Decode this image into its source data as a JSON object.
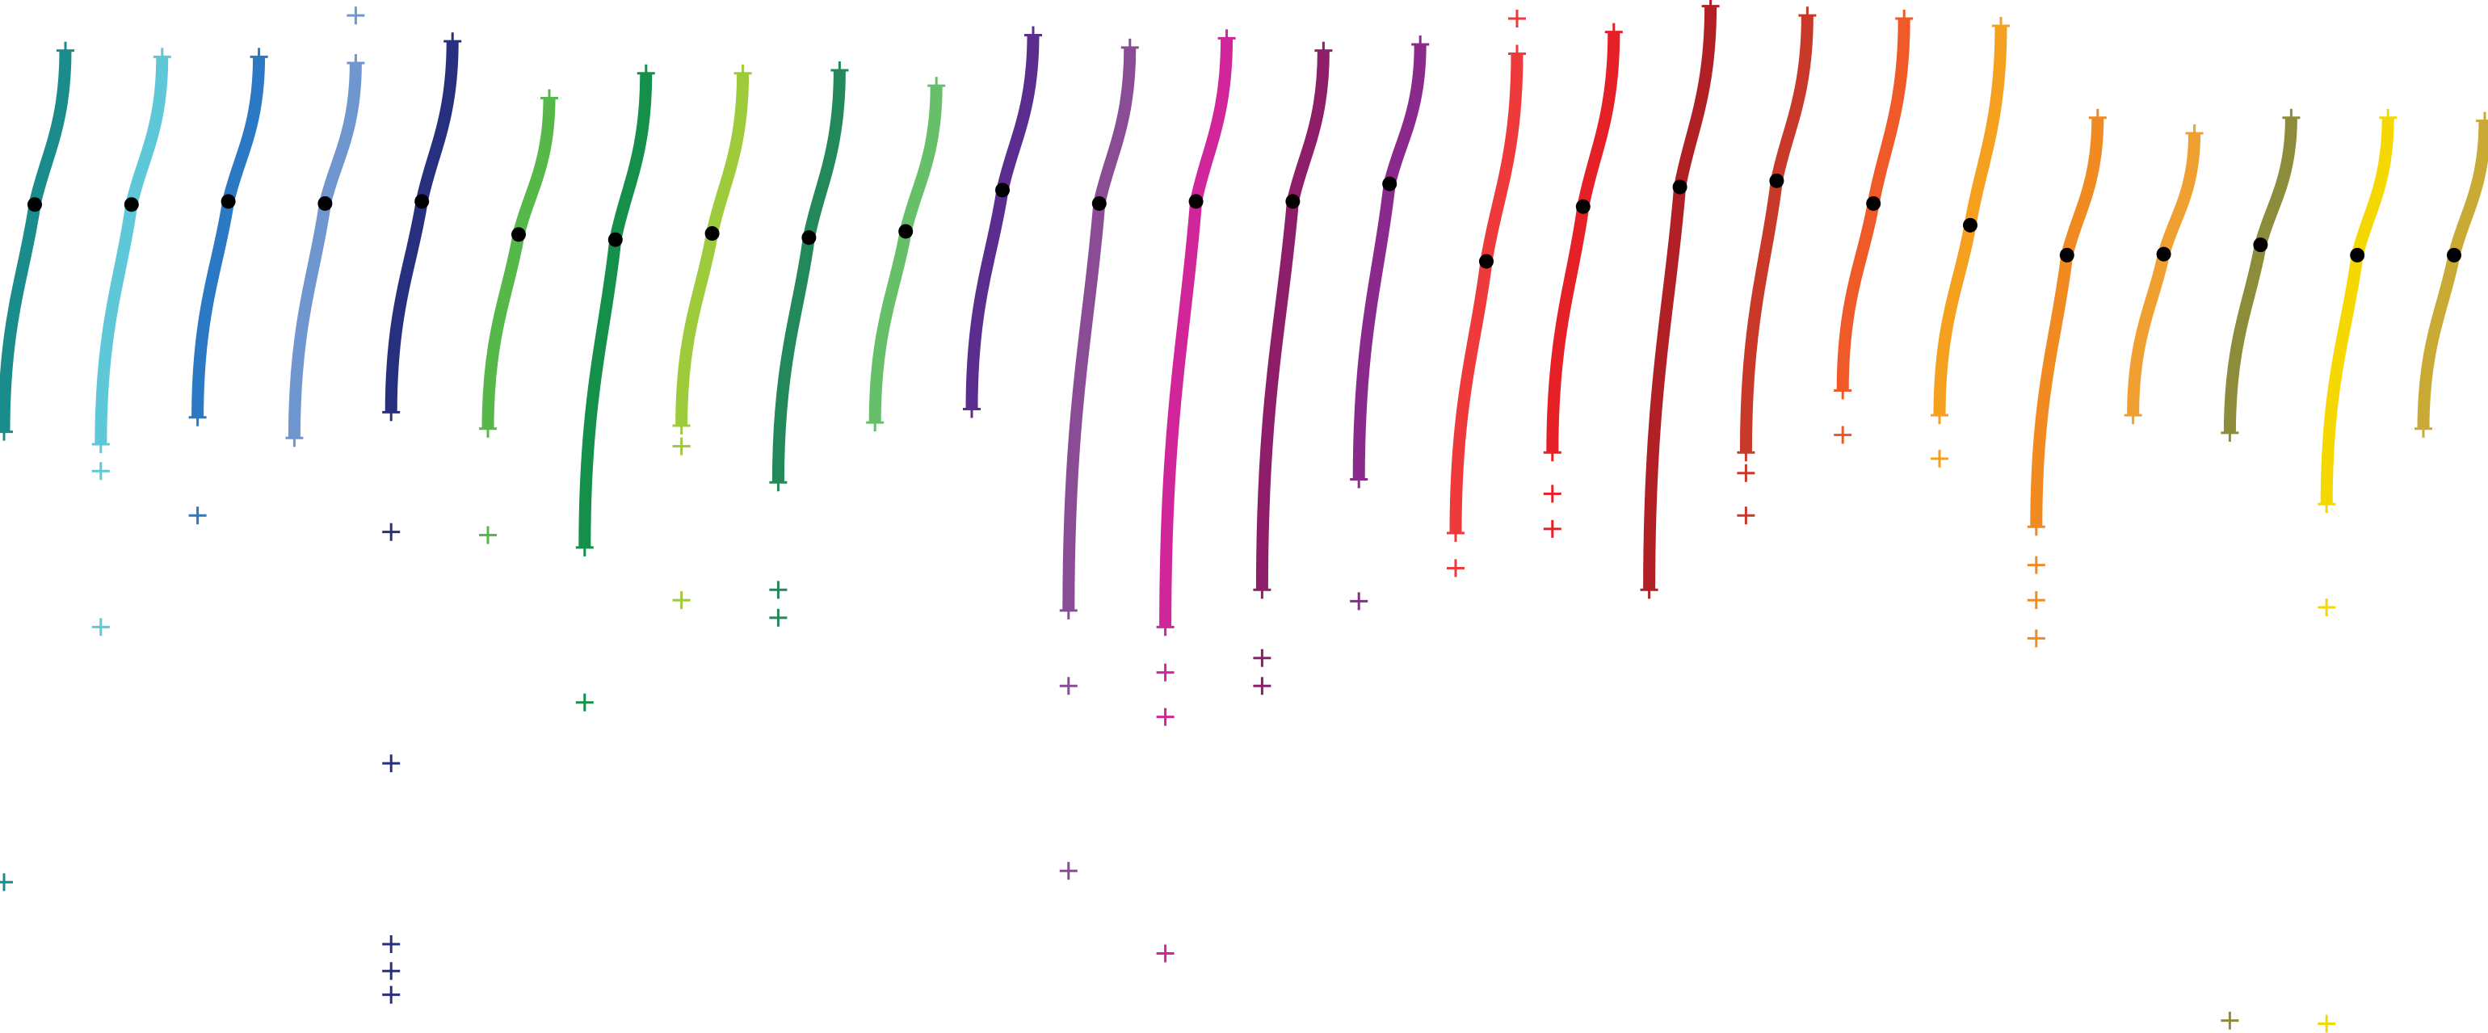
{
  "chart_data": {
    "type": "sigmoid-strip",
    "ylim": [
      0,
      100
    ],
    "series": [
      {
        "color": "#1a8c8c",
        "upper": 95.1,
        "median": 80.2,
        "lower": 58.2,
        "points": [
          14.6
        ]
      },
      {
        "color": "#5fc8d8",
        "upper": 94.5,
        "median": 80.2,
        "lower": 57.0,
        "points": [
          54.4,
          39.3
        ]
      },
      {
        "color": "#2b78c4",
        "upper": 94.5,
        "median": 80.5,
        "lower": 59.6,
        "points": [
          50.1
        ]
      },
      {
        "color": "#7096d0",
        "upper": 93.9,
        "median": 80.3,
        "lower": 57.6,
        "points": [
          98.5
        ]
      },
      {
        "color": "#27307f",
        "upper": 96.0,
        "median": 80.5,
        "lower": 60.1,
        "points": [
          48.5,
          26.1,
          8.6,
          6.0,
          3.7
        ]
      },
      {
        "color": "#55b848",
        "upper": 90.5,
        "median": 77.3,
        "lower": 58.5,
        "points": [
          48.2
        ]
      },
      {
        "color": "#14904a",
        "upper": 92.9,
        "median": 76.8,
        "lower": 47.0,
        "points": [
          32.0
        ]
      },
      {
        "color": "#9ecb3c",
        "upper": 92.9,
        "median": 77.4,
        "lower": 58.8,
        "points": [
          56.8,
          41.9
        ]
      },
      {
        "color": "#23885a",
        "upper": 93.2,
        "median": 77.0,
        "lower": 53.3,
        "points": [
          42.9,
          40.2
        ]
      },
      {
        "color": "#68bf6a",
        "upper": 91.7,
        "median": 77.6,
        "lower": 59.1,
        "points": []
      },
      {
        "color": "#5b2d8f",
        "upper": 96.6,
        "median": 81.6,
        "lower": 60.4,
        "points": []
      },
      {
        "color": "#8b4c96",
        "upper": 95.4,
        "median": 80.3,
        "lower": 40.9,
        "points": [
          33.6,
          15.7
        ]
      },
      {
        "color": "#d0269a",
        "upper": 96.3,
        "median": 80.5,
        "lower": 39.3,
        "points": [
          34.9,
          30.6,
          7.7
        ]
      },
      {
        "color": "#8e1e6a",
        "upper": 95.1,
        "median": 80.5,
        "lower": 42.9,
        "points": [
          36.3,
          33.6
        ]
      },
      {
        "color": "#8a2a8c",
        "upper": 95.7,
        "median": 82.2,
        "lower": 53.6,
        "points": [
          41.8
        ]
      },
      {
        "color": "#ee3a3a",
        "upper": 94.8,
        "median": 74.7,
        "lower": 48.4,
        "points": [
          98.2,
          45.0
        ]
      },
      {
        "color": "#e52027",
        "upper": 96.9,
        "median": 80.0,
        "lower": 56.2,
        "points": [
          52.2,
          48.8
        ]
      },
      {
        "color": "#b02025",
        "upper": 99.4,
        "median": 81.9,
        "lower": 42.9,
        "points": []
      },
      {
        "color": "#c8392a",
        "upper": 98.5,
        "median": 82.5,
        "lower": 56.2,
        "points": [
          54.2,
          50.1
        ]
      },
      {
        "color": "#f05a28",
        "upper": 98.2,
        "median": 80.3,
        "lower": 62.2,
        "points": [
          57.9
        ]
      },
      {
        "color": "#f6a020",
        "upper": 97.5,
        "median": 78.2,
        "lower": 59.8,
        "points": [
          55.6
        ]
      },
      {
        "color": "#f28a22",
        "upper": 88.6,
        "median": 75.3,
        "lower": 49.0,
        "points": [
          45.3,
          41.9,
          38.2
        ]
      },
      {
        "color": "#f0a030",
        "upper": 87.1,
        "median": 75.4,
        "lower": 59.8,
        "points": []
      },
      {
        "color": "#8c8c3a",
        "upper": 88.6,
        "median": 76.3,
        "lower": 58.1,
        "points": [
          1.2
        ]
      },
      {
        "color": "#f5d800",
        "upper": 88.6,
        "median": 75.3,
        "lower": 51.2,
        "points": [
          41.2,
          0.9
        ]
      },
      {
        "color": "#c8aa34",
        "upper": 88.3,
        "median": 75.3,
        "lower": 58.5,
        "points": []
      }
    ]
  }
}
